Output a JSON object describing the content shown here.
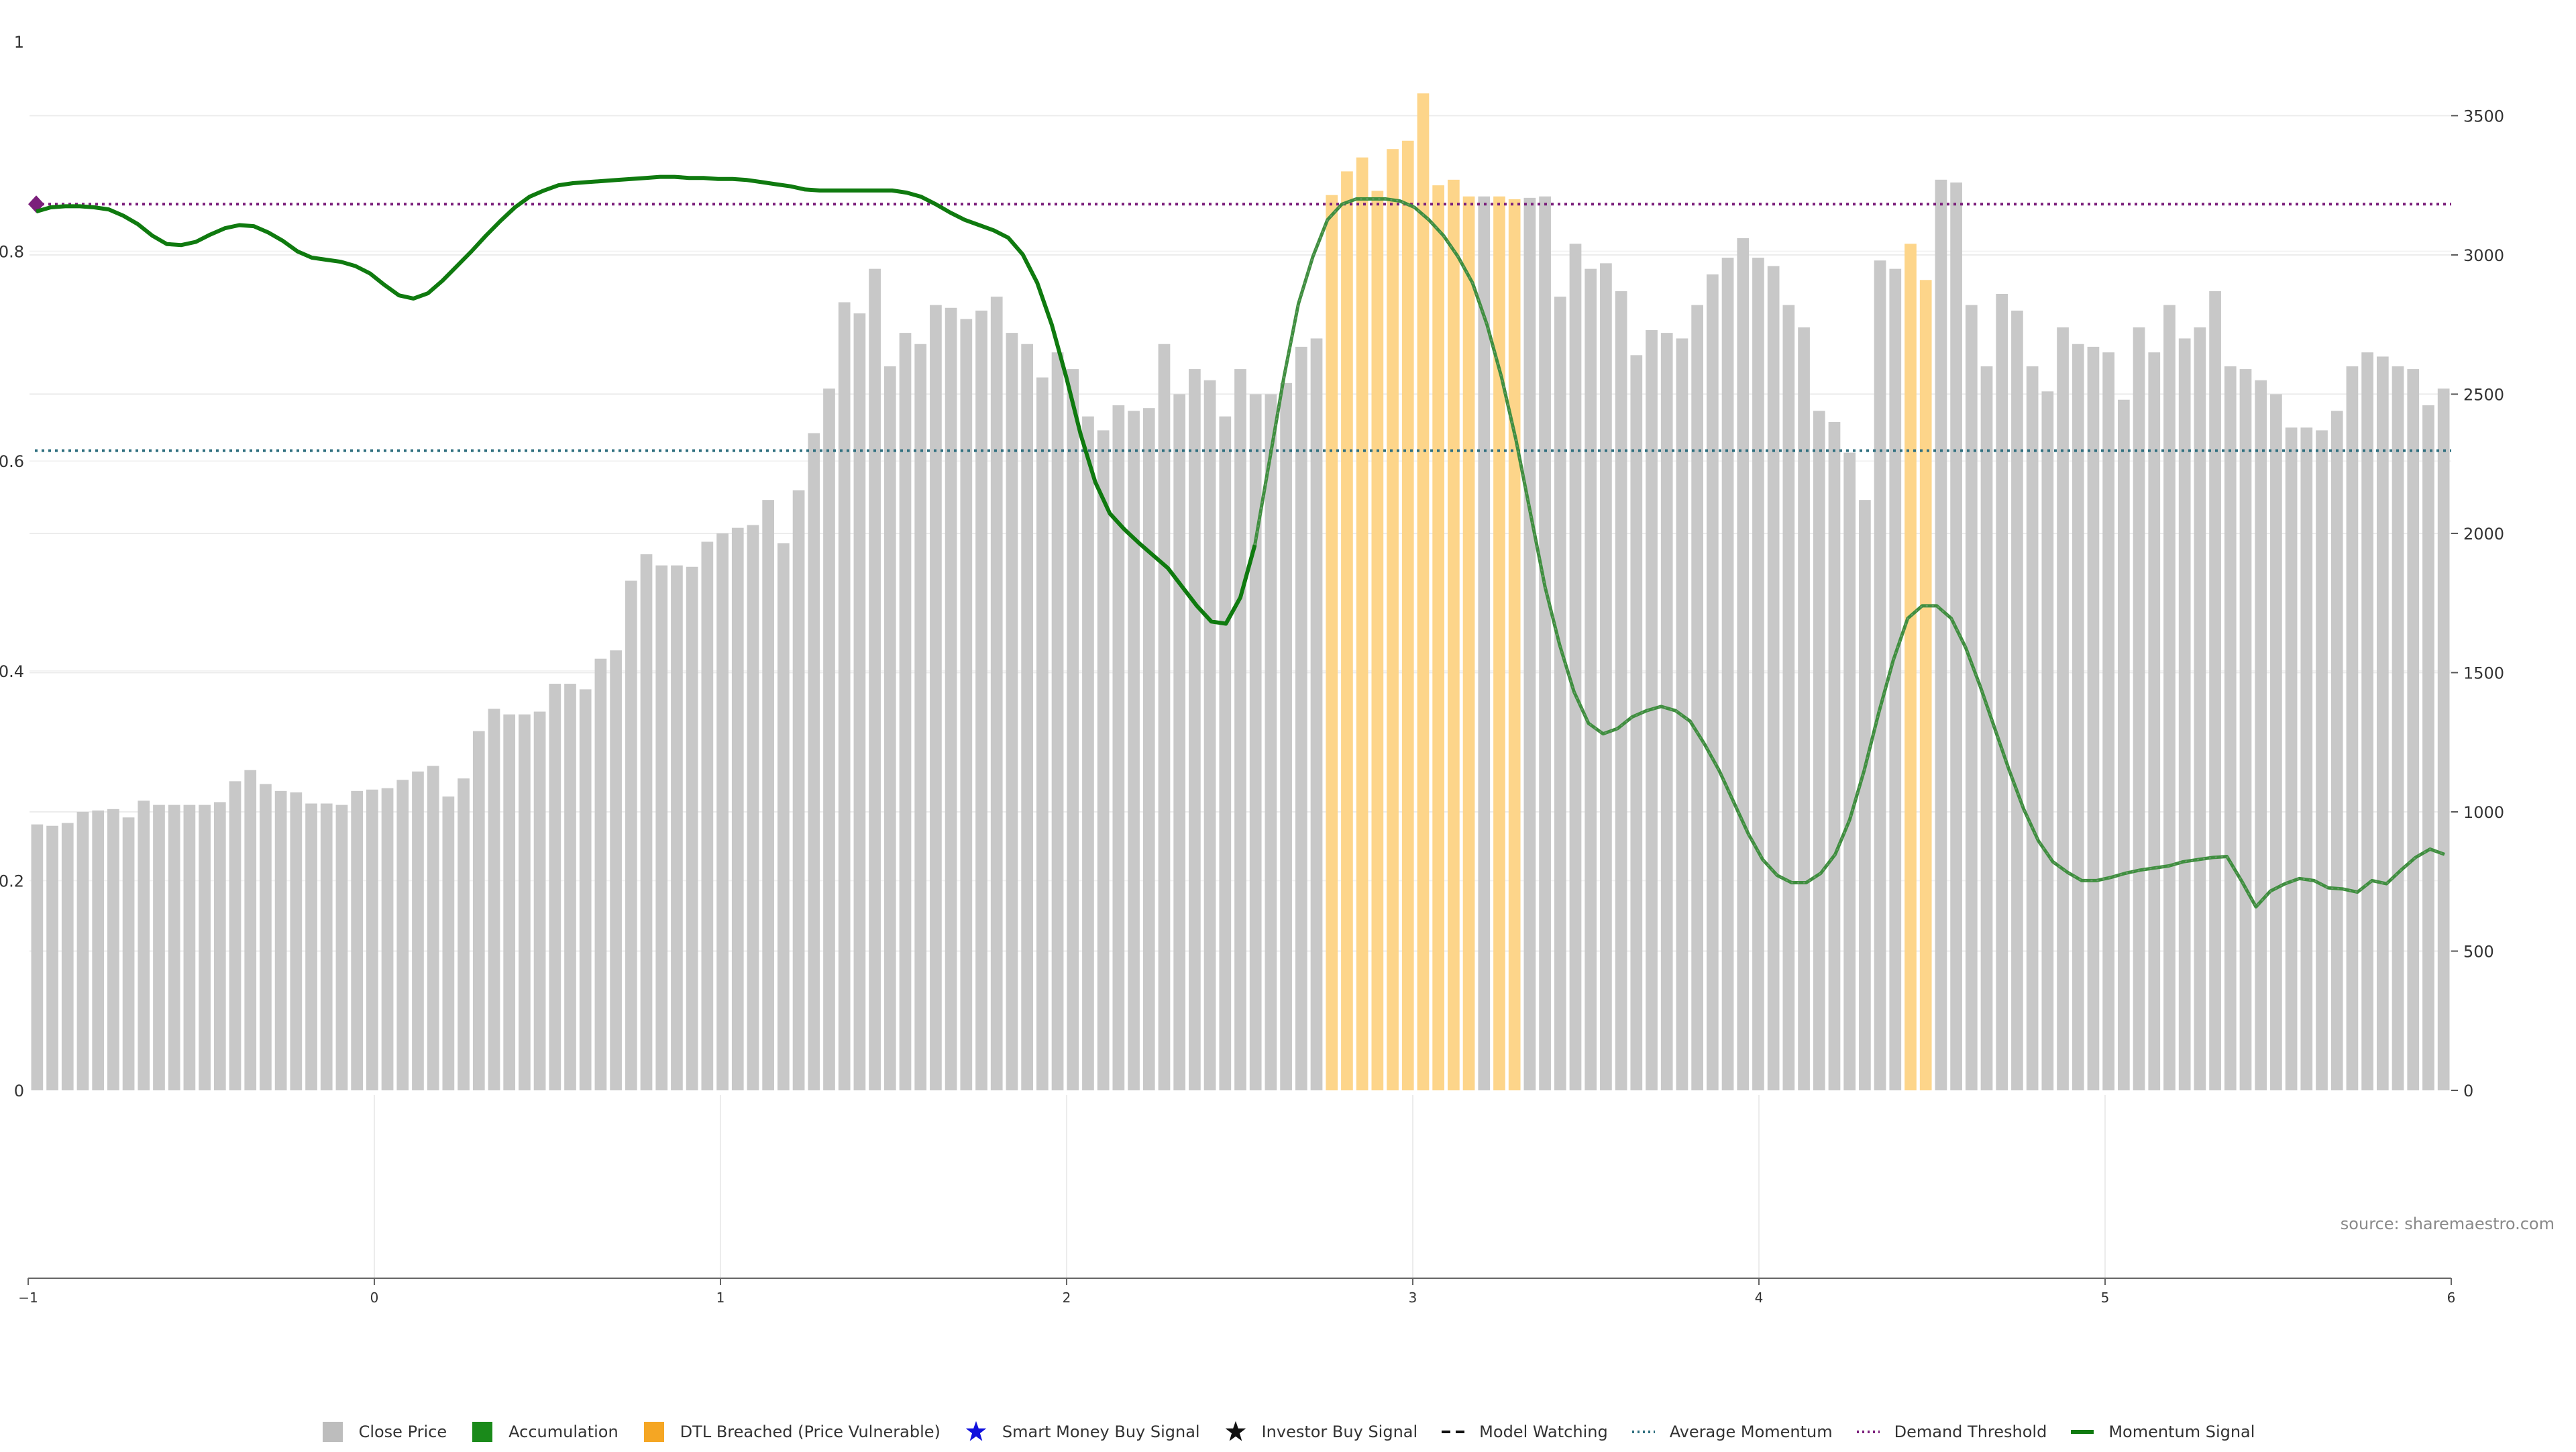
{
  "chart_data": {
    "type": "bar",
    "title": "",
    "xlabel": "",
    "left_axis": {
      "ylim": [
        0,
        1
      ],
      "ticks": [
        0,
        0.2,
        0.4,
        0.6,
        0.8,
        1
      ],
      "tick_labels": [
        "0",
        "0.2",
        "0.4",
        "0.6",
        "0.8",
        "1"
      ]
    },
    "right_axis": {
      "ylim": [
        0,
        3766
      ],
      "ticks": [
        0,
        500,
        1000,
        1500,
        2000,
        2500,
        3000,
        3500
      ],
      "tick_labels": [
        "0",
        "500",
        "1000",
        "1500",
        "2000",
        "2500",
        "3000",
        "3500"
      ]
    },
    "x_axis": {
      "xlim": [
        -1,
        6
      ],
      "ticks": [
        -1,
        0,
        1,
        2,
        3,
        4,
        5,
        6
      ],
      "tick_labels": [
        "−1",
        "0",
        "1",
        "2",
        "3",
        "4",
        "5",
        "6"
      ]
    },
    "grid": true,
    "legend_placement": "bottom-center",
    "colors": {
      "close_price": "#c8c8c8",
      "dtl_breached": "#fdd58a",
      "accumulation": "#1a8a1a",
      "momentum": "#0f7a0f",
      "momentum_recent": "#3f8f3f",
      "average_momentum": "#2f6f7f",
      "demand_threshold": "#7b1f7b",
      "smart_money": "#1010dd",
      "investor": "#111111",
      "model_watching": "#111111"
    },
    "close_price_values": [
      955,
      950,
      960,
      1000,
      1005,
      1010,
      980,
      1040,
      1025,
      1025,
      1025,
      1025,
      1035,
      1110,
      1150,
      1100,
      1075,
      1070,
      1030,
      1030,
      1025,
      1075,
      1080,
      1085,
      1115,
      1145,
      1165,
      1055,
      1120,
      1290,
      1370,
      1350,
      1350,
      1360,
      1460,
      1460,
      1440,
      1550,
      1580,
      1830,
      1925,
      1885,
      1885,
      1880,
      1970,
      2000,
      2020,
      2030,
      2120,
      1965,
      2155,
      2360,
      2520,
      2830,
      2790,
      2950,
      2600,
      2720,
      2680,
      2820,
      2810,
      2770,
      2800,
      2850,
      2720,
      2680,
      2560,
      2650,
      2590,
      2420,
      2370,
      2460,
      2440,
      2450,
      2680,
      2500,
      2590,
      2550,
      2420,
      2590,
      2500,
      2500,
      2540,
      2670,
      2700,
      3215,
      3300,
      3350,
      3230,
      3380,
      3410,
      3580,
      3250,
      3270,
      3210,
      3210,
      3210,
      3200,
      3205,
      3210,
      2850,
      3040,
      2950,
      2970,
      2870,
      2640,
      2730,
      2720,
      2700,
      2820,
      2930,
      2990,
      3060,
      2990,
      2960,
      2820,
      2740,
      2440,
      2400,
      2290,
      2120,
      2980,
      2950,
      3040,
      2910,
      3270,
      3260,
      2820,
      2600,
      2860,
      2800,
      2600,
      2510,
      2740,
      2680,
      2670,
      2650,
      2480,
      2740,
      2650,
      2820,
      2700,
      2740,
      2870,
      2600,
      2590,
      2550,
      2500,
      2380,
      2380,
      2370,
      2440,
      2600,
      2650,
      2635,
      2600,
      2590,
      2460,
      2520
    ],
    "dtl_breached_indices": [
      85,
      86,
      87,
      88,
      89,
      90,
      91,
      92,
      93,
      94,
      96,
      97,
      123,
      124
    ],
    "momentum_signal": [
      0.838,
      0.842,
      0.843,
      0.843,
      0.842,
      0.84,
      0.834,
      0.826,
      0.815,
      0.807,
      0.806,
      0.809,
      0.816,
      0.822,
      0.825,
      0.824,
      0.818,
      0.81,
      0.8,
      0.794,
      0.792,
      0.79,
      0.786,
      0.779,
      0.768,
      0.758,
      0.755,
      0.76,
      0.772,
      0.786,
      0.8,
      0.815,
      0.829,
      0.842,
      0.852,
      0.858,
      0.863,
      0.865,
      0.866,
      0.867,
      0.868,
      0.869,
      0.87,
      0.871,
      0.871,
      0.87,
      0.87,
      0.869,
      0.869,
      0.868,
      0.866,
      0.864,
      0.862,
      0.859,
      0.858,
      0.858,
      0.858,
      0.858,
      0.858,
      0.858,
      0.856,
      0.852,
      0.845,
      0.837,
      0.83,
      0.825,
      0.82,
      0.813,
      0.797,
      0.77,
      0.73,
      0.68,
      0.625,
      0.58,
      0.55,
      0.535,
      0.522,
      0.51,
      0.498,
      0.48,
      0.462,
      0.447,
      0.445,
      0.47,
      0.52,
      0.6,
      0.68,
      0.75,
      0.795,
      0.83,
      0.845,
      0.85,
      0.85,
      0.85,
      0.848,
      0.842,
      0.83,
      0.815,
      0.795,
      0.77,
      0.73,
      0.68,
      0.62,
      0.55,
      0.48,
      0.425,
      0.38,
      0.35,
      0.34,
      0.345,
      0.356,
      0.362,
      0.366,
      0.362,
      0.352,
      0.33,
      0.305,
      0.275,
      0.245,
      0.22,
      0.205,
      0.198,
      0.198,
      0.207,
      0.225,
      0.258,
      0.305,
      0.36,
      0.41,
      0.45,
      0.462,
      0.462,
      0.45,
      0.422,
      0.385,
      0.345,
      0.305,
      0.268,
      0.238,
      0.218,
      0.208,
      0.2,
      0.2,
      0.203,
      0.207,
      0.21,
      0.212,
      0.214,
      0.218,
      0.22,
      0.222,
      0.223,
      0.2,
      0.175,
      0.19,
      0.197,
      0.202,
      0.2,
      0.193,
      0.192,
      0.189,
      0.2,
      0.197,
      0.21,
      0.222,
      0.23,
      0.225
    ],
    "momentum_recent_start_index": 84,
    "average_momentum": 0.61,
    "demand_threshold": 0.845,
    "series": [
      {
        "name": "Close Price"
      },
      {
        "name": "Accumulation"
      },
      {
        "name": "DTL Breached (Price Vulnerable)"
      },
      {
        "name": "Smart Money Buy Signal"
      },
      {
        "name": "Investor Buy Signal"
      },
      {
        "name": "Model Watching"
      },
      {
        "name": "Average Momentum"
      },
      {
        "name": "Demand Threshold"
      },
      {
        "name": "Momentum Signal"
      }
    ]
  },
  "legend": {
    "close_price": "Close Price",
    "accumulation": "Accumulation",
    "dtl_breached": "DTL Breached (Price Vulnerable)",
    "smart_money": "Smart Money Buy Signal",
    "investor": "Investor Buy Signal",
    "model_watching": "Model Watching",
    "average_momentum": "Average Momentum",
    "demand_threshold": "Demand Threshold",
    "momentum_signal": "Momentum Signal"
  },
  "source_text": "source: sharemaestro.com"
}
